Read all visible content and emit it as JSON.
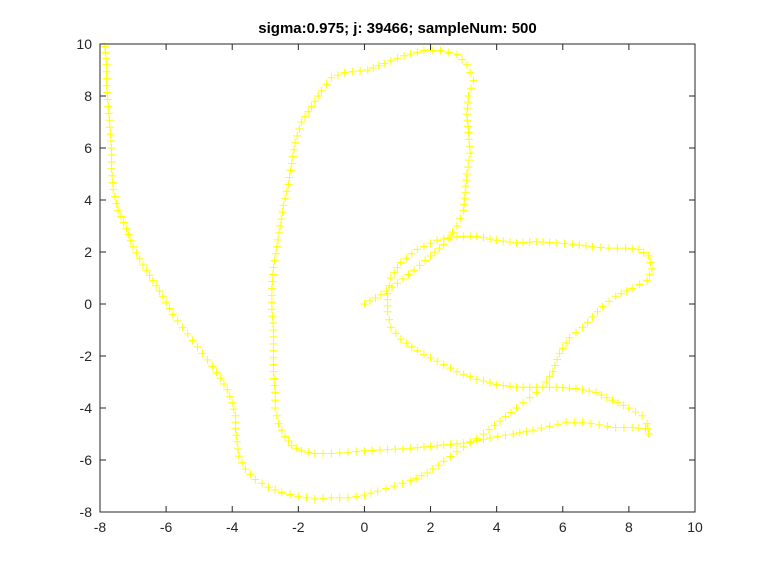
{
  "chart_data": {
    "type": "scatter",
    "title": "sigma:0.975; j: 39466; sampleNum: 500",
    "xlabel": "",
    "ylabel": "",
    "xlim": [
      -8,
      10
    ],
    "ylim": [
      -8,
      10
    ],
    "xticks": [
      -8,
      -6,
      -4,
      -2,
      0,
      2,
      4,
      6,
      8,
      10
    ],
    "yticks": [
      -8,
      -6,
      -4,
      -2,
      0,
      2,
      4,
      6,
      8,
      10
    ],
    "grid": false,
    "marker": "+",
    "marker_color": "#ffff00",
    "box": true,
    "series": [
      {
        "points": [
          [
            0.0,
            0.0
          ],
          [
            0.5,
            0.35
          ],
          [
            1.0,
            0.8
          ],
          [
            1.5,
            1.3
          ],
          [
            2.0,
            1.85
          ],
          [
            2.4,
            2.3
          ],
          [
            2.8,
            3.0
          ],
          [
            3.0,
            3.6
          ],
          [
            3.05,
            4.3
          ],
          [
            3.1,
            5.0
          ],
          [
            3.2,
            5.8
          ],
          [
            3.15,
            6.6
          ],
          [
            3.1,
            7.3
          ],
          [
            3.15,
            8.0
          ],
          [
            3.3,
            8.6
          ],
          [
            3.1,
            9.2
          ],
          [
            2.8,
            9.6
          ],
          [
            2.3,
            9.75
          ],
          [
            1.8,
            9.75
          ],
          [
            1.2,
            9.55
          ],
          [
            0.6,
            9.25
          ],
          [
            0.1,
            9.0
          ],
          [
            -0.6,
            8.9
          ],
          [
            -1.0,
            8.7
          ],
          [
            -1.3,
            8.2
          ],
          [
            -1.6,
            7.6
          ],
          [
            -1.9,
            7.0
          ],
          [
            -2.1,
            6.2
          ],
          [
            -2.2,
            5.4
          ],
          [
            -2.3,
            4.6
          ],
          [
            -2.45,
            3.8
          ],
          [
            -2.55,
            3.0
          ],
          [
            -2.65,
            2.2
          ],
          [
            -2.75,
            1.4
          ],
          [
            -2.8,
            0.6
          ],
          [
            -2.8,
            -0.2
          ],
          [
            -2.75,
            -1.0
          ],
          [
            -2.75,
            -1.8
          ],
          [
            -2.75,
            -2.6
          ],
          [
            -2.7,
            -3.4
          ],
          [
            -2.7,
            -4.0
          ],
          [
            -2.6,
            -4.6
          ],
          [
            -2.4,
            -5.1
          ],
          [
            -2.2,
            -5.45
          ],
          [
            -1.9,
            -5.65
          ],
          [
            -1.5,
            -5.75
          ],
          [
            -1.0,
            -5.75
          ],
          [
            -0.5,
            -5.7
          ],
          [
            0.0,
            -5.65
          ],
          [
            0.7,
            -5.6
          ],
          [
            1.4,
            -5.55
          ],
          [
            2.2,
            -5.45
          ],
          [
            3.0,
            -5.35
          ],
          [
            3.8,
            -5.15
          ],
          [
            4.5,
            -5.0
          ],
          [
            5.1,
            -4.85
          ],
          [
            5.6,
            -4.7
          ],
          [
            6.1,
            -4.55
          ],
          [
            6.6,
            -4.55
          ],
          [
            7.1,
            -4.65
          ],
          [
            7.6,
            -4.75
          ],
          [
            8.1,
            -4.75
          ],
          [
            8.5,
            -4.8
          ],
          [
            8.6,
            -5.0
          ],
          [
            8.55,
            -4.6
          ],
          [
            8.4,
            -4.3
          ],
          [
            8.0,
            -4.0
          ],
          [
            7.5,
            -3.7
          ],
          [
            7.0,
            -3.4
          ],
          [
            6.4,
            -3.25
          ],
          [
            5.8,
            -3.2
          ],
          [
            5.2,
            -3.2
          ],
          [
            4.6,
            -3.2
          ],
          [
            4.0,
            -3.1
          ],
          [
            3.4,
            -2.9
          ],
          [
            2.8,
            -2.6
          ],
          [
            2.2,
            -2.2
          ],
          [
            1.6,
            -1.8
          ],
          [
            1.1,
            -1.35
          ],
          [
            0.8,
            -0.9
          ],
          [
            0.7,
            -0.3
          ],
          [
            0.7,
            0.4
          ],
          [
            0.8,
            1.0
          ],
          [
            1.1,
            1.6
          ],
          [
            1.6,
            2.1
          ],
          [
            2.2,
            2.45
          ],
          [
            2.8,
            2.6
          ],
          [
            3.4,
            2.6
          ],
          [
            4.0,
            2.45
          ],
          [
            4.6,
            2.35
          ],
          [
            5.2,
            2.4
          ],
          [
            5.8,
            2.35
          ],
          [
            6.3,
            2.3
          ],
          [
            6.9,
            2.2
          ],
          [
            7.4,
            2.15
          ],
          [
            7.9,
            2.15
          ],
          [
            8.3,
            2.1
          ],
          [
            8.6,
            1.85
          ],
          [
            8.7,
            1.35
          ],
          [
            8.55,
            0.9
          ],
          [
            8.1,
            0.6
          ],
          [
            7.6,
            0.3
          ],
          [
            7.2,
            -0.1
          ],
          [
            6.9,
            -0.5
          ],
          [
            6.6,
            -0.9
          ],
          [
            6.2,
            -1.3
          ],
          [
            5.9,
            -1.9
          ],
          [
            5.7,
            -2.6
          ],
          [
            5.4,
            -3.2
          ],
          [
            5.0,
            -3.6
          ],
          [
            4.6,
            -4.0
          ],
          [
            4.1,
            -4.5
          ],
          [
            3.6,
            -5.0
          ],
          [
            3.0,
            -5.5
          ],
          [
            2.4,
            -6.05
          ],
          [
            1.9,
            -6.5
          ],
          [
            1.4,
            -6.8
          ],
          [
            0.9,
            -7.0
          ],
          [
            0.4,
            -7.2
          ],
          [
            0.0,
            -7.35
          ],
          [
            -0.5,
            -7.45
          ],
          [
            -1.0,
            -7.45
          ],
          [
            -1.5,
            -7.5
          ],
          [
            -2.0,
            -7.4
          ],
          [
            -2.5,
            -7.25
          ],
          [
            -2.9,
            -7.05
          ],
          [
            -3.3,
            -6.75
          ],
          [
            -3.6,
            -6.35
          ],
          [
            -3.8,
            -5.85
          ],
          [
            -3.85,
            -5.3
          ],
          [
            -3.9,
            -4.8
          ],
          [
            -3.9,
            -4.3
          ],
          [
            -4.0,
            -3.8
          ],
          [
            -4.15,
            -3.3
          ],
          [
            -4.35,
            -2.85
          ],
          [
            -4.6,
            -2.4
          ],
          [
            -4.9,
            -1.9
          ],
          [
            -5.2,
            -1.4
          ],
          [
            -5.5,
            -0.9
          ],
          [
            -5.8,
            -0.4
          ],
          [
            -6.1,
            0.3
          ],
          [
            -6.4,
            0.9
          ],
          [
            -6.7,
            1.5
          ],
          [
            -7.0,
            2.2
          ],
          [
            -7.2,
            2.9
          ],
          [
            -7.45,
            3.6
          ],
          [
            -7.6,
            4.4
          ],
          [
            -7.65,
            5.2
          ],
          [
            -7.65,
            6.0
          ],
          [
            -7.7,
            6.8
          ],
          [
            -7.75,
            7.6
          ],
          [
            -7.8,
            8.4
          ],
          [
            -7.8,
            9.2
          ],
          [
            -7.85,
            9.9
          ]
        ]
      }
    ]
  }
}
